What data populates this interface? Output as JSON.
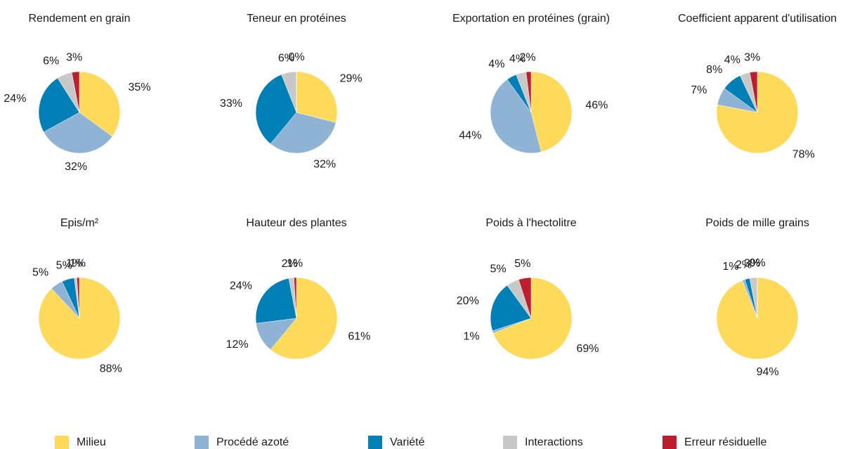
{
  "chart_data": [
    {
      "type": "pie",
      "title": "Rendement en grain",
      "categories": [
        "Milieu",
        "Procédé azoté",
        "Variété",
        "Interactions",
        "Erreur résiduelle"
      ],
      "colors": [
        "#ffd95a",
        "#8fb3d5",
        "#0080b6",
        "#c8c8c8",
        "#be1e2d"
      ],
      "values": [
        35,
        32,
        24,
        6,
        3
      ],
      "value_labels": [
        "35%",
        "32%",
        "24%",
        "6%",
        "3%"
      ]
    },
    {
      "type": "pie",
      "title": "Teneur en protéines",
      "categories": [
        "Milieu",
        "Procédé azoté",
        "Variété",
        "Interactions",
        "Erreur résiduelle"
      ],
      "colors": [
        "#ffd95a",
        "#8fb3d5",
        "#0080b6",
        "#c8c8c8",
        "#be1e2d"
      ],
      "values": [
        29,
        32,
        33,
        6,
        0
      ],
      "value_labels": [
        "29%",
        "32%",
        "33%",
        "6%",
        "0%"
      ]
    },
    {
      "type": "pie",
      "title": "Exportation en protéines (grain)",
      "categories": [
        "Milieu",
        "Procédé azoté",
        "Variété",
        "Interactions",
        "Erreur résiduelle"
      ],
      "colors": [
        "#ffd95a",
        "#8fb3d5",
        "#0080b6",
        "#c8c8c8",
        "#be1e2d"
      ],
      "values": [
        46,
        44,
        4,
        4,
        2
      ],
      "value_labels": [
        "46%",
        "44%",
        "4%",
        "4%",
        "2%"
      ]
    },
    {
      "type": "pie",
      "title": "Coefficient apparent d'utilisation",
      "categories": [
        "Milieu",
        "Procédé azoté",
        "Variété",
        "Interactions",
        "Erreur résiduelle"
      ],
      "colors": [
        "#ffd95a",
        "#8fb3d5",
        "#0080b6",
        "#c8c8c8",
        "#be1e2d"
      ],
      "values": [
        78,
        7,
        8,
        4,
        3
      ],
      "value_labels": [
        "78%",
        "7%",
        "8%",
        "4%",
        "3%"
      ]
    },
    {
      "type": "pie",
      "title": "Epis/m²",
      "categories": [
        "Milieu",
        "Procédé azoté",
        "Variété",
        "Interactions",
        "Erreur résiduelle"
      ],
      "colors": [
        "#ffd95a",
        "#8fb3d5",
        "#0080b6",
        "#c8c8c8",
        "#be1e2d"
      ],
      "values": [
        88,
        5,
        5,
        1,
        1
      ],
      "value_labels": [
        "88%",
        "5%",
        "5%",
        "1%",
        "1%"
      ]
    },
    {
      "type": "pie",
      "title": "Hauteur des plantes",
      "categories": [
        "Milieu",
        "Procédé azoté",
        "Variété",
        "Interactions",
        "Erreur résiduelle"
      ],
      "colors": [
        "#ffd95a",
        "#8fb3d5",
        "#0080b6",
        "#c8c8c8",
        "#be1e2d"
      ],
      "values": [
        61,
        12,
        24,
        2,
        1
      ],
      "value_labels": [
        "61%",
        "12%",
        "24%",
        "2%",
        "1%"
      ]
    },
    {
      "type": "pie",
      "title": "Poids à l'hectolitre",
      "categories": [
        "Milieu",
        "Procédé azoté",
        "Variété",
        "Interactions",
        "Erreur résiduelle"
      ],
      "colors": [
        "#ffd95a",
        "#8fb3d5",
        "#0080b6",
        "#c8c8c8",
        "#be1e2d"
      ],
      "values": [
        69,
        1,
        20,
        5,
        5
      ],
      "value_labels": [
        "69%",
        "1%",
        "20%",
        "5%",
        "5%"
      ]
    },
    {
      "type": "pie",
      "title": "Poids de mille grains",
      "categories": [
        "Milieu",
        "Procédé azoté",
        "Variété",
        "Interactions",
        "Erreur résiduelle"
      ],
      "colors": [
        "#ffd95a",
        "#8fb3d5",
        "#0080b6",
        "#c8c8c8",
        "#be1e2d"
      ],
      "values": [
        94,
        1,
        2,
        3,
        0
      ],
      "value_labels": [
        "94%",
        "1%",
        "2%",
        "3%",
        "0%"
      ]
    }
  ]
}
